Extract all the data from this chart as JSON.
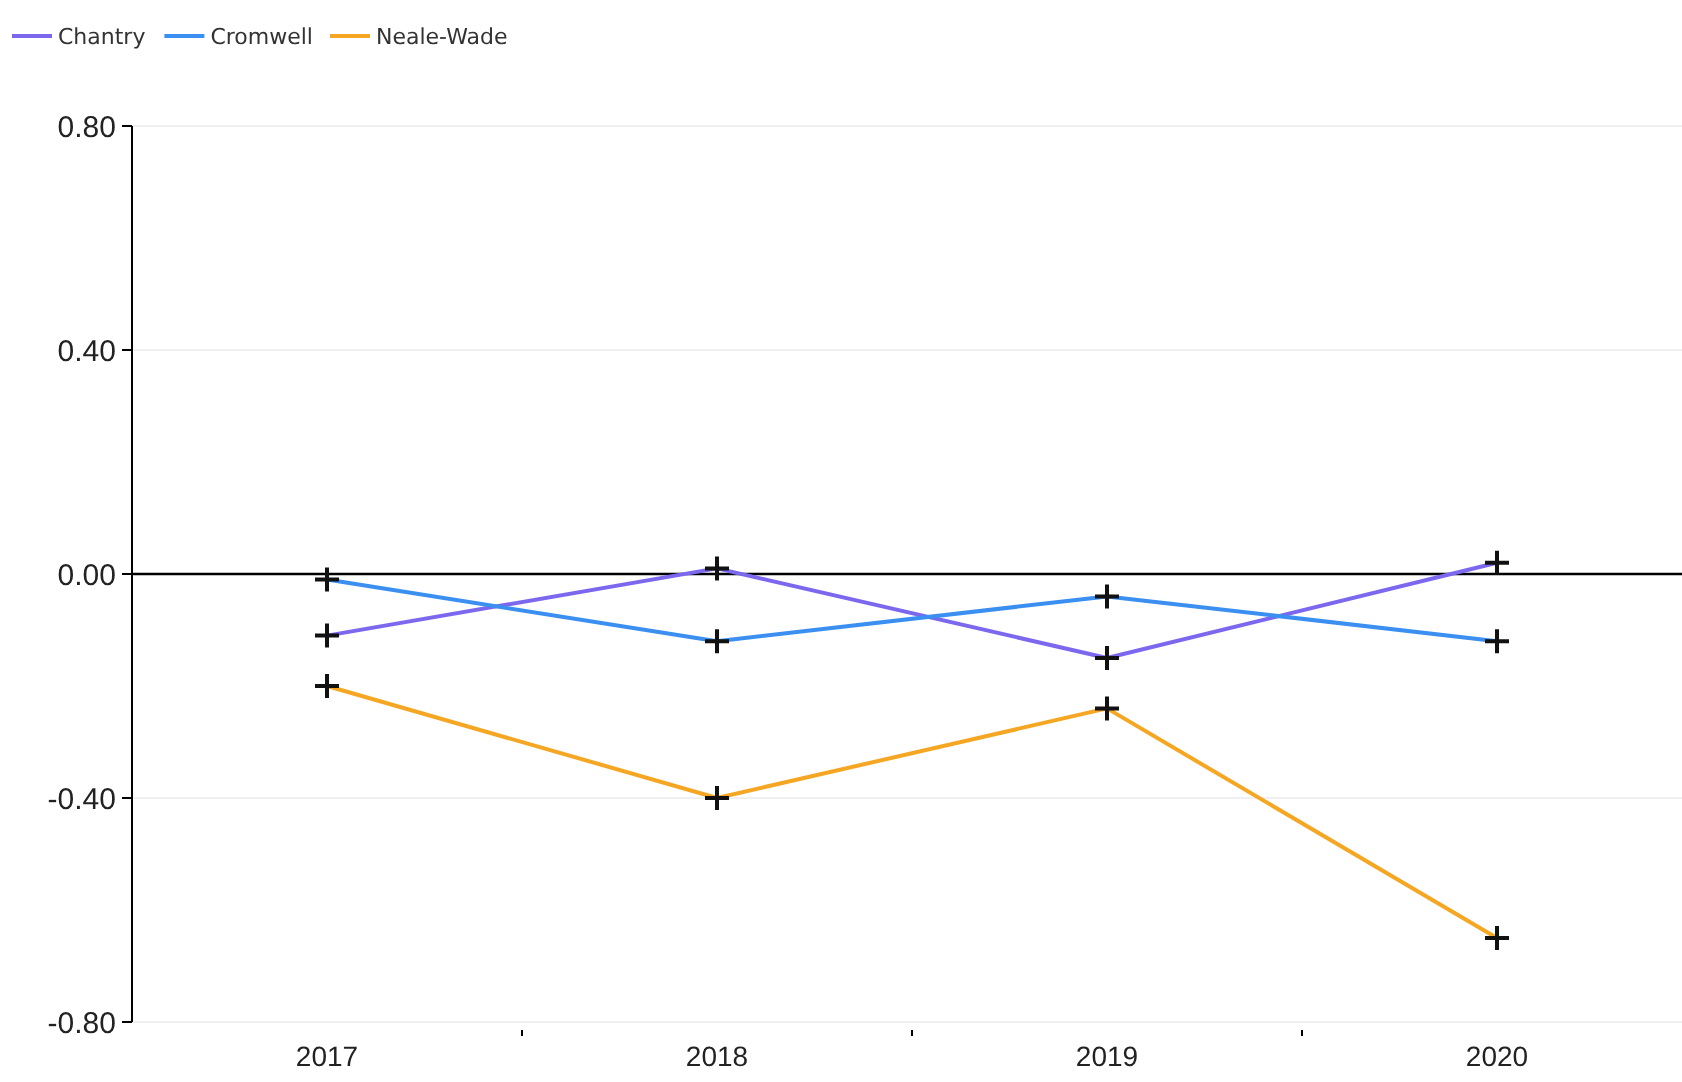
{
  "chart_data": {
    "type": "line",
    "categories": [
      "2017",
      "2018",
      "2019",
      "2020"
    ],
    "series": [
      {
        "name": "Chantry",
        "color": "#7b68ee",
        "values": [
          -0.11,
          0.01,
          -0.15,
          0.02
        ]
      },
      {
        "name": "Cromwell",
        "color": "#3a8ff0",
        "values": [
          -0.01,
          -0.12,
          -0.04,
          -0.12
        ]
      },
      {
        "name": "Neale-Wade",
        "color": "#f5a623",
        "values": [
          -0.2,
          -0.4,
          -0.24,
          -0.65
        ]
      }
    ],
    "ylim": [
      -0.8,
      0.8
    ],
    "yticks": [
      {
        "value": -0.8,
        "label": "-0.80"
      },
      {
        "value": -0.4,
        "label": "-0.40"
      },
      {
        "value": 0,
        "label": "0.00"
      },
      {
        "value": 0.4,
        "label": "0.40"
      },
      {
        "value": 0.8,
        "label": "0.80"
      }
    ],
    "grid": "y",
    "legend": "top left",
    "marker": "cross",
    "line_style": "solid"
  }
}
